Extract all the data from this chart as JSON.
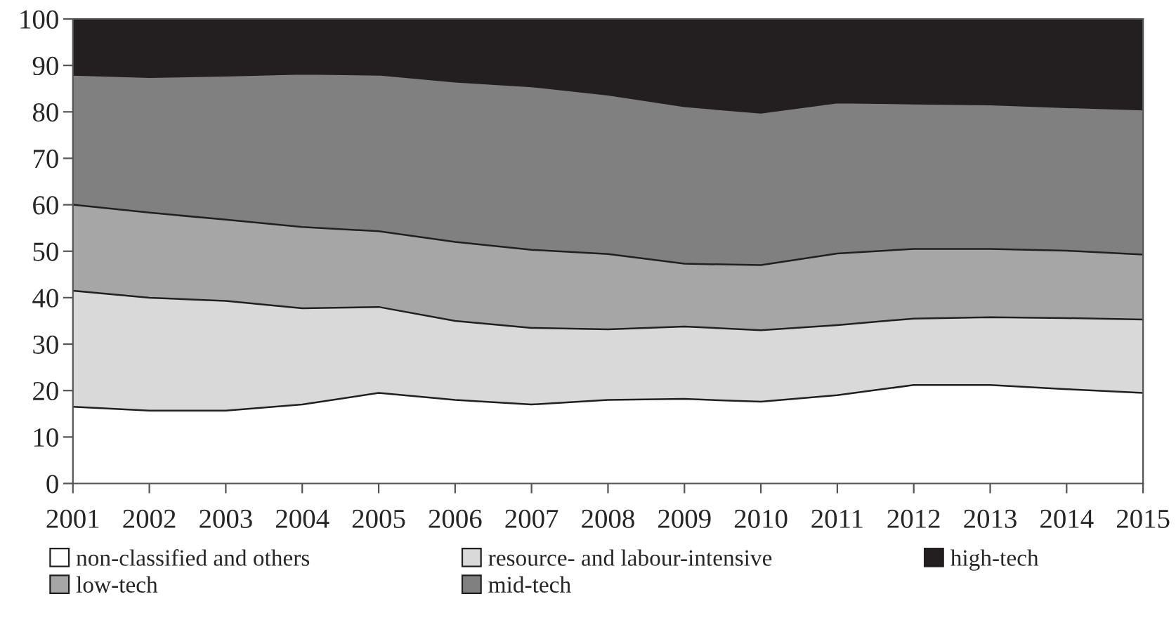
{
  "chart_data": {
    "type": "area",
    "stacked": true,
    "legend": "bottom",
    "x": [
      2001,
      2002,
      2003,
      2004,
      2005,
      2006,
      2007,
      2008,
      2009,
      2010,
      2011,
      2012,
      2013,
      2014,
      2015
    ],
    "xlim": [
      2001,
      2015
    ],
    "xticks": [
      2001,
      2002,
      2003,
      2004,
      2005,
      2006,
      2007,
      2008,
      2009,
      2010,
      2011,
      2012,
      2013,
      2014,
      2015
    ],
    "ylim": [
      0,
      100
    ],
    "yticks": [
      0,
      10,
      20,
      30,
      40,
      50,
      60,
      70,
      80,
      90,
      100
    ],
    "series": [
      {
        "name": "non-classified and others",
        "color": "#ffffff",
        "values": [
          16.5,
          15.7,
          15.7,
          17,
          19.5,
          18,
          17,
          18,
          18.2,
          17.6,
          19,
          21.2,
          21.2,
          20.3,
          19.5
        ]
      },
      {
        "name": "resource- and labour-intensive",
        "color": "#d9d9d9",
        "values": [
          25,
          24.3,
          23.6,
          20.7,
          18.5,
          17,
          16.5,
          15.2,
          15.6,
          15.4,
          15.1,
          14.3,
          14.6,
          15.3,
          15.8
        ]
      },
      {
        "name": "low-tech",
        "color": "#a6a6a6",
        "values": [
          18.5,
          18.3,
          17.5,
          17.5,
          16.3,
          17,
          16.8,
          16.2,
          13.5,
          14,
          15.4,
          15,
          14.7,
          14.5,
          14
        ]
      },
      {
        "name": "mid-tech",
        "color": "#808080",
        "values": [
          28,
          29.2,
          31,
          33,
          33.7,
          34.5,
          35.2,
          34.3,
          33.9,
          32.8,
          32.5,
          31.3,
          31.1,
          30.9,
          31.2
        ]
      },
      {
        "name": "high-tech",
        "color": "#231f20",
        "values": [
          12,
          12.5,
          12.2,
          11.8,
          12,
          13.5,
          14.5,
          16.3,
          18.8,
          20.2,
          18,
          18.2,
          18.4,
          19,
          19.5
        ]
      }
    ]
  }
}
